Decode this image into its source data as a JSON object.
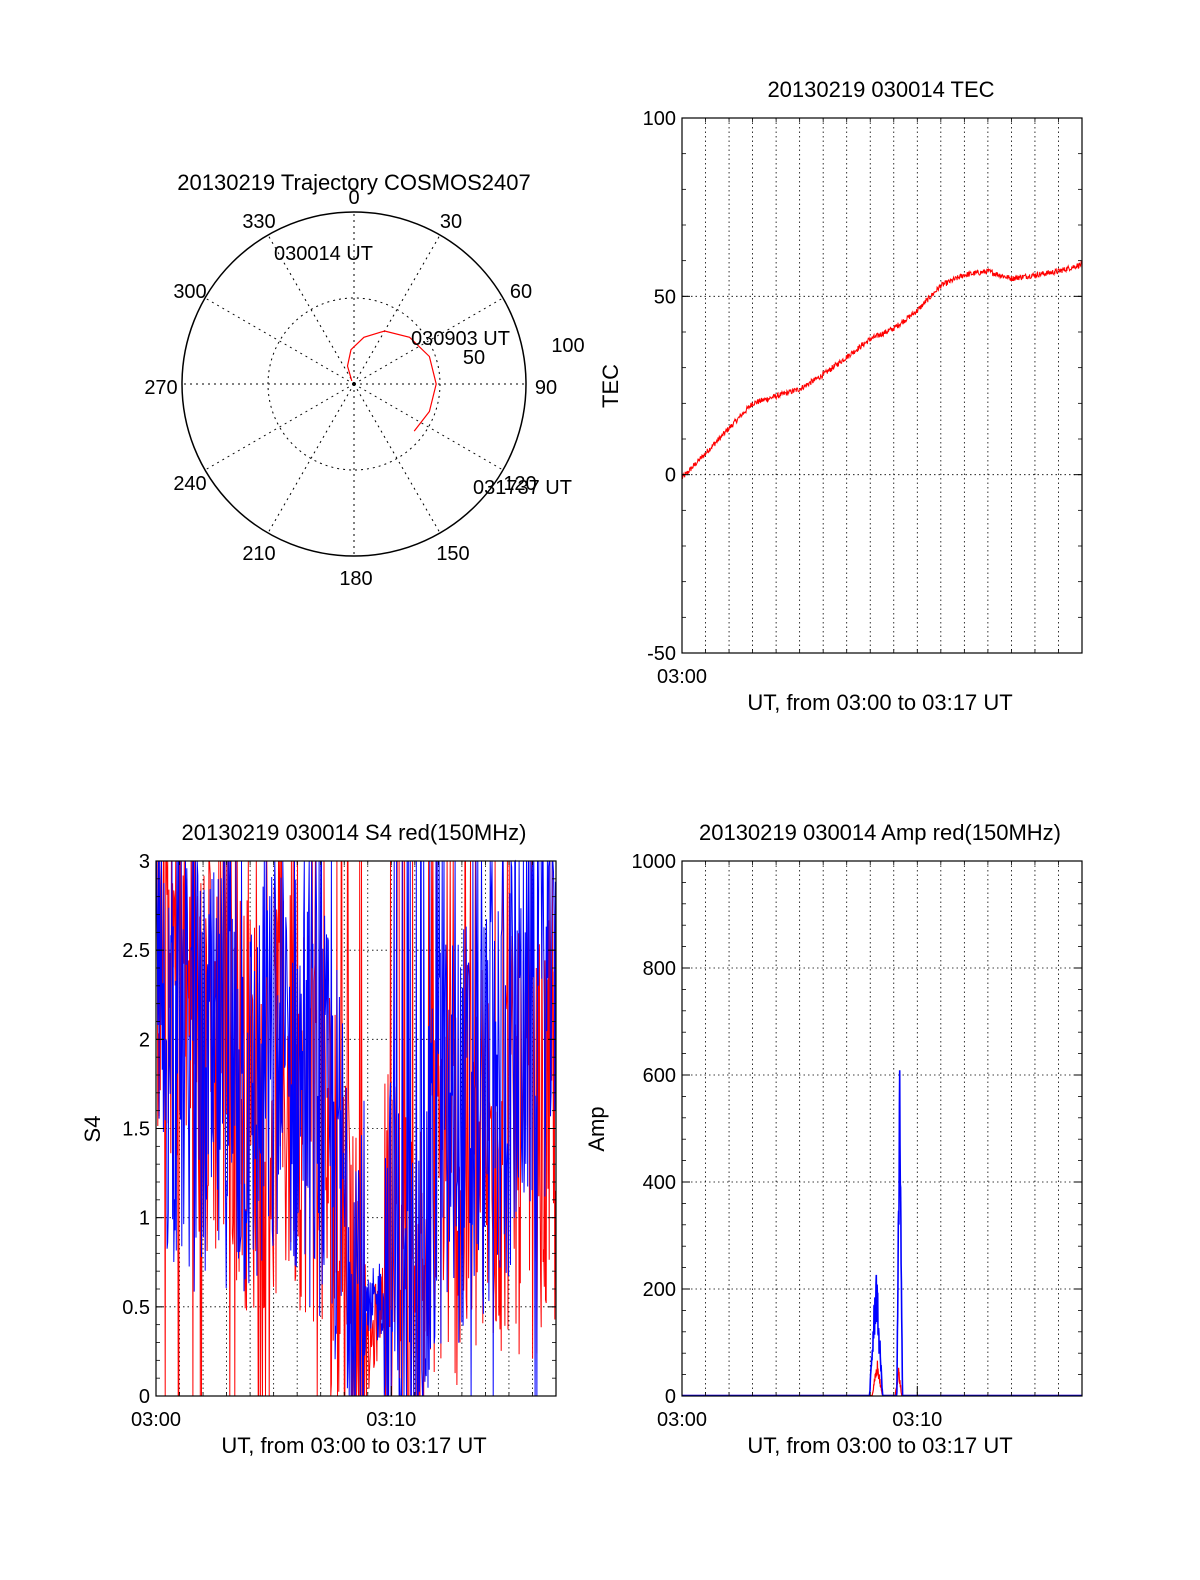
{
  "chart_data": [
    {
      "id": "trajectory",
      "type": "polar",
      "title": "20130219 Trajectory COSMOS2407",
      "azimuth_labels": [
        "0",
        "30",
        "60",
        "90",
        "120",
        "150",
        "180",
        "210",
        "240",
        "270",
        "300",
        "330"
      ],
      "radial_labels": [
        "50",
        "100"
      ],
      "radial_range": [
        0,
        100
      ],
      "grid": true,
      "series": [
        {
          "color": "#ff0000",
          "points": [
            [
              324,
              88
            ],
            [
              340,
              80
            ],
            [
              355,
              72
            ],
            [
              12,
              65
            ],
            [
              30,
              58
            ],
            [
              50,
              52
            ],
            [
              70,
              48
            ],
            [
              90,
              47
            ],
            [
              110,
              48
            ],
            [
              128,
              50
            ]
          ]
        }
      ],
      "annotations": [
        {
          "text": "030014 UT",
          "az": 324,
          "el": 88
        },
        {
          "text": "030903 UT",
          "az": 70,
          "el": 48
        },
        {
          "text": "031737 UT",
          "az": 128,
          "el": 50
        }
      ]
    },
    {
      "id": "tec",
      "type": "line",
      "title": "20130219 030014 TEC",
      "xlabel": "UT, from 03:00 to 03:17 UT",
      "ylabel": "TEC",
      "xlim": [
        "03:00",
        "03:17"
      ],
      "ylim": [
        -50,
        100
      ],
      "yticks": [
        "-50",
        "0",
        "50",
        "100"
      ],
      "xticks": [
        "03:00"
      ],
      "grid": true,
      "series": [
        {
          "color": "#ff0000",
          "x": [
            "03:00",
            "03:01",
            "03:02",
            "03:03",
            "03:04",
            "03:05",
            "03:06",
            "03:07",
            "03:08",
            "03:09",
            "03:10",
            "03:11",
            "03:12",
            "03:13",
            "03:14",
            "03:15",
            "03:16",
            "03:17"
          ],
          "values": [
            -1,
            6,
            13,
            20,
            22,
            24,
            28,
            33,
            38,
            41,
            46,
            53,
            56,
            57,
            55,
            56,
            57,
            59
          ]
        }
      ]
    },
    {
      "id": "s4",
      "type": "line",
      "title": "20130219 030014 S4 red(150MHz)",
      "xlabel": "UT, from 03:00 to 03:17 UT",
      "ylabel": "S4",
      "xlim": [
        "03:00",
        "03:17"
      ],
      "ylim": [
        0,
        3
      ],
      "yticks": [
        "0",
        "0.5",
        "1",
        "1.5",
        "2",
        "2.5",
        "3"
      ],
      "xticks": [
        "03:00",
        "03:10"
      ],
      "grid": true,
      "series": [
        {
          "color": "#ff0000",
          "values": [
            2.6,
            2.4,
            1.8,
            2.0,
            1.6,
            1.7,
            1.7,
            1.5,
            0.9,
            0.2,
            0.8,
            0.3,
            1.3,
            1.2,
            1.3,
            1.4,
            1.4,
            1.5
          ]
        },
        {
          "color": "#0000ff",
          "values": [
            2.0,
            1.9,
            1.7,
            1.8,
            1.6,
            1.8,
            1.8,
            1.6,
            1.1,
            0.4,
            0.7,
            0.2,
            1.4,
            1.5,
            1.6,
            1.8,
            2.2,
            2.4
          ]
        }
      ]
    },
    {
      "id": "amp",
      "type": "line",
      "title": "20130219 030014 Amp red(150MHz)",
      "xlabel": "UT, from 03:00 to 03:17 UT",
      "ylabel": "Amp",
      "xlim": [
        "03:00",
        "03:17"
      ],
      "ylim": [
        0,
        1000
      ],
      "yticks": [
        "0",
        "200",
        "400",
        "600",
        "800",
        "1000"
      ],
      "xticks": [
        "03:00",
        "03:10"
      ],
      "grid": true,
      "series": [
        {
          "color": "#ff0000",
          "peaks": [
            [
              8.3,
              70
            ],
            [
              9.2,
              60
            ]
          ]
        },
        {
          "color": "#0000ff",
          "peaks": [
            [
              8.25,
              255
            ],
            [
              9.25,
              660
            ]
          ]
        }
      ]
    }
  ]
}
